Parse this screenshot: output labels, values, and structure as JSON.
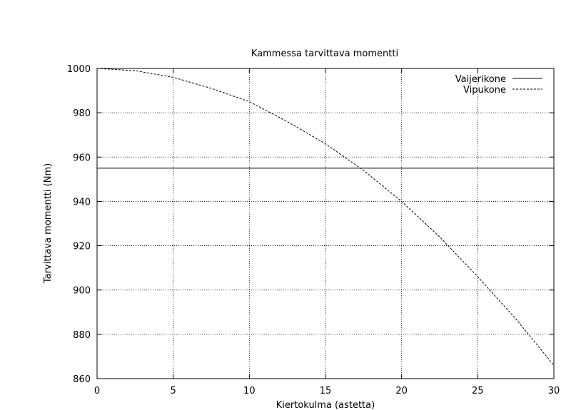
{
  "chart_data": {
    "type": "line",
    "title": "Kammessa tarvittava momentti",
    "xlabel": "Kiertokulma (astetta)",
    "ylabel": "Tarvittava momentti (Nm)",
    "xlim": [
      0,
      30
    ],
    "ylim": [
      860,
      1000
    ],
    "x_ticks": [
      "0",
      "5",
      "10",
      "15",
      "20",
      "25",
      "30"
    ],
    "y_ticks": [
      "860",
      "880",
      "900",
      "920",
      "940",
      "960",
      "980",
      "1000"
    ],
    "grid": true,
    "legend_position": "top-right",
    "series": [
      {
        "name": "Vaijerikone",
        "style": "solid",
        "x": [
          0,
          30
        ],
        "y": [
          955,
          955
        ]
      },
      {
        "name": "Vipukone",
        "style": "dashed",
        "x": [
          0,
          2.5,
          5,
          7.5,
          10,
          12.5,
          15,
          17.5,
          20,
          22.5,
          25,
          27.5,
          30
        ],
        "y": [
          1000,
          999,
          996,
          991,
          985,
          976,
          966,
          954,
          940,
          924,
          906,
          887,
          866
        ]
      }
    ]
  }
}
